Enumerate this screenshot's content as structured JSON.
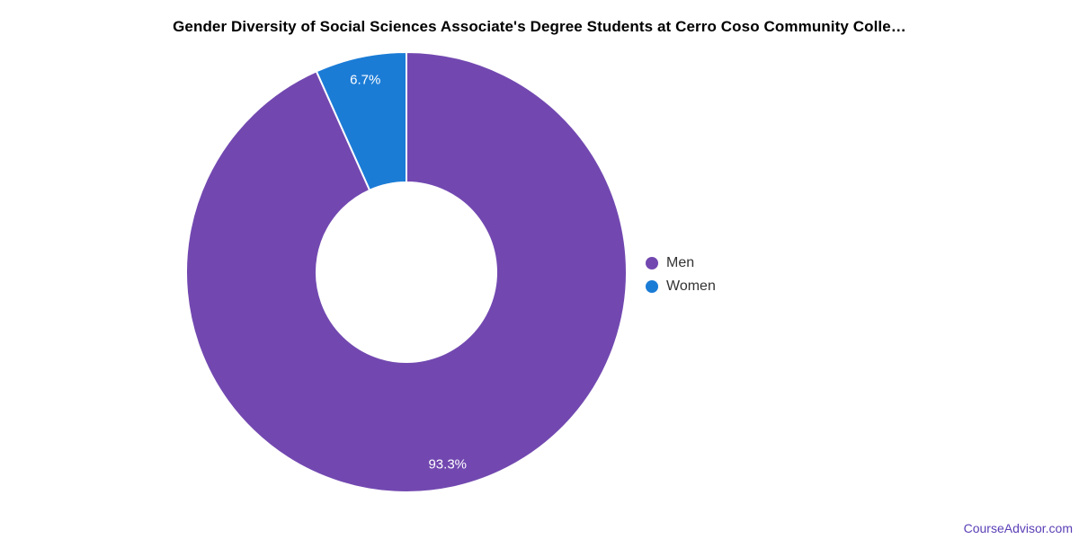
{
  "header": {
    "title": "Gender Diversity of Social Sciences Associate's Degree Students at Cerro Coso Community Colle…"
  },
  "legend": {
    "items": [
      {
        "label": "Men",
        "color": "#7248B0"
      },
      {
        "label": "Women",
        "color": "#1B7CD6"
      }
    ]
  },
  "footer": {
    "link_label": "CourseAdvisor.com",
    "link_color": "#5B3FB5"
  },
  "chart_data": {
    "type": "pie",
    "title": "Gender Diversity of Social Sciences Associate's Degree Students at Cerro Coso Community Colle…",
    "categories": [
      "Men",
      "Women"
    ],
    "values": [
      93.3,
      6.7
    ],
    "slice_labels": [
      "93.3%",
      "6.7%"
    ],
    "colors": [
      "#7248B0",
      "#1B7CD6"
    ],
    "donut": true,
    "hole_ratio": 0.41,
    "start_angle_deg": 0,
    "direction": "clockwise",
    "legend_position": "right",
    "slice_label_color": "#ffffff",
    "slice_border_color": "#ffffff"
  }
}
